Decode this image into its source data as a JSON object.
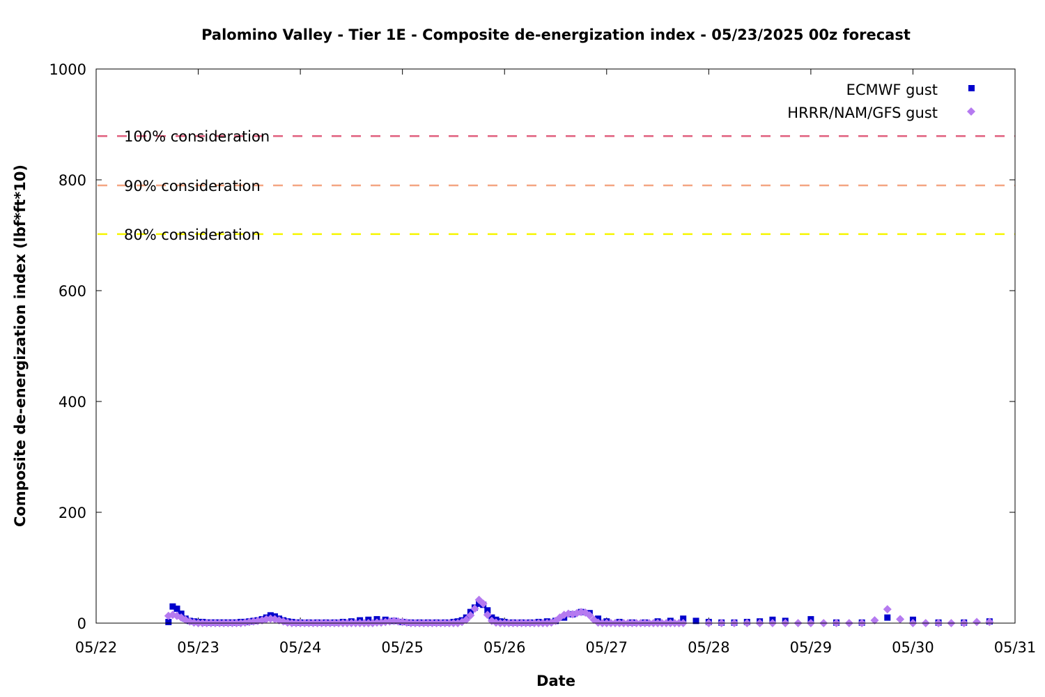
{
  "chart_data": {
    "type": "scatter",
    "title": "Palomino Valley - Tier 1E - Composite de-energization index - 05/23/2025 00z forecast",
    "xlabel": "Date",
    "ylabel": "Composite de-energization index (lbf*ft*10)",
    "ylim": [
      0,
      1000
    ],
    "xlim": [
      "05/22 00:00",
      "05/31 00:00"
    ],
    "x_ticks": [
      "05/22",
      "05/23",
      "05/24",
      "05/25",
      "05/26",
      "05/27",
      "05/28",
      "05/29",
      "05/30",
      "05/31"
    ],
    "y_ticks": [
      0,
      200,
      400,
      600,
      800,
      1000
    ],
    "grid": false,
    "legend_position": "top-right",
    "thresholds": [
      {
        "label": "100% consideration",
        "value": 879,
        "color": "#e0607e"
      },
      {
        "label": "90% consideration",
        "value": 790,
        "color": "#f4a582"
      },
      {
        "label": "80% consideration",
        "value": 702,
        "color": "#f5f500"
      }
    ],
    "series": [
      {
        "name": "ECMWF gust",
        "color": "#0000cc",
        "marker": "square",
        "points": [
          [
            "05/22 17:00",
            2
          ],
          [
            "05/22 18:00",
            30
          ],
          [
            "05/22 19:00",
            26
          ],
          [
            "05/22 20:00",
            17
          ],
          [
            "05/22 21:00",
            8
          ],
          [
            "05/22 22:00",
            4
          ],
          [
            "05/22 23:00",
            3
          ],
          [
            "05/23 00:00",
            2
          ],
          [
            "05/23 01:00",
            2
          ],
          [
            "05/23 02:00",
            1
          ],
          [
            "05/23 03:00",
            1
          ],
          [
            "05/23 04:00",
            1
          ],
          [
            "05/23 05:00",
            1
          ],
          [
            "05/23 06:00",
            1
          ],
          [
            "05/23 07:00",
            1
          ],
          [
            "05/23 08:00",
            1
          ],
          [
            "05/23 09:00",
            1
          ],
          [
            "05/23 10:00",
            2
          ],
          [
            "05/23 11:00",
            2
          ],
          [
            "05/23 12:00",
            3
          ],
          [
            "05/23 13:00",
            4
          ],
          [
            "05/23 14:00",
            5
          ],
          [
            "05/23 15:00",
            7
          ],
          [
            "05/23 16:00",
            10
          ],
          [
            "05/23 17:00",
            14
          ],
          [
            "05/23 18:00",
            12
          ],
          [
            "05/23 19:00",
            8
          ],
          [
            "05/23 20:00",
            5
          ],
          [
            "05/23 21:00",
            3
          ],
          [
            "05/23 22:00",
            2
          ],
          [
            "05/23 23:00",
            1
          ],
          [
            "05/24 00:00",
            1
          ],
          [
            "05/24 02:00",
            1
          ],
          [
            "05/24 04:00",
            1
          ],
          [
            "05/24 06:00",
            1
          ],
          [
            "05/24 08:00",
            1
          ],
          [
            "05/24 10:00",
            2
          ],
          [
            "05/24 12:00",
            3
          ],
          [
            "05/24 14:00",
            5
          ],
          [
            "05/24 16:00",
            6
          ],
          [
            "05/24 18:00",
            7
          ],
          [
            "05/24 20:00",
            6
          ],
          [
            "05/24 22:00",
            4
          ],
          [
            "05/25 00:00",
            2
          ],
          [
            "05/25 02:00",
            1
          ],
          [
            "05/25 04:00",
            1
          ],
          [
            "05/25 06:00",
            1
          ],
          [
            "05/25 08:00",
            1
          ],
          [
            "05/25 10:00",
            1
          ],
          [
            "05/25 12:00",
            2
          ],
          [
            "05/25 13:00",
            3
          ],
          [
            "05/25 14:00",
            5
          ],
          [
            "05/25 15:00",
            10
          ],
          [
            "05/25 16:00",
            20
          ],
          [
            "05/25 17:00",
            28
          ],
          [
            "05/25 18:00",
            35
          ],
          [
            "05/25 19:00",
            33
          ],
          [
            "05/25 20:00",
            23
          ],
          [
            "05/25 21:00",
            10
          ],
          [
            "05/25 22:00",
            6
          ],
          [
            "05/25 23:00",
            3
          ],
          [
            "05/26 00:00",
            2
          ],
          [
            "05/26 02:00",
            1
          ],
          [
            "05/26 04:00",
            1
          ],
          [
            "05/26 06:00",
            1
          ],
          [
            "05/26 08:00",
            2
          ],
          [
            "05/26 10:00",
            3
          ],
          [
            "05/26 12:00",
            4
          ],
          [
            "05/26 14:00",
            10
          ],
          [
            "05/26 16:00",
            16
          ],
          [
            "05/26 18:00",
            20
          ],
          [
            "05/26 20:00",
            18
          ],
          [
            "05/26 22:00",
            8
          ],
          [
            "05/27 00:00",
            3
          ],
          [
            "05/27 03:00",
            2
          ],
          [
            "05/27 06:00",
            1
          ],
          [
            "05/27 09:00",
            1
          ],
          [
            "05/27 12:00",
            3
          ],
          [
            "05/27 15:00",
            4
          ],
          [
            "05/27 18:00",
            8
          ],
          [
            "05/27 21:00",
            4
          ],
          [
            "05/28 00:00",
            2
          ],
          [
            "05/28 03:00",
            1
          ],
          [
            "05/28 06:00",
            1
          ],
          [
            "05/28 09:00",
            2
          ],
          [
            "05/28 12:00",
            3
          ],
          [
            "05/28 15:00",
            6
          ],
          [
            "05/28 18:00",
            4
          ],
          [
            "05/29 00:00",
            7
          ],
          [
            "05/29 06:00",
            1
          ],
          [
            "05/29 12:00",
            1
          ],
          [
            "05/29 18:00",
            10
          ],
          [
            "05/30 00:00",
            6
          ],
          [
            "05/30 06:00",
            1
          ],
          [
            "05/30 12:00",
            1
          ],
          [
            "05/30 18:00",
            3
          ]
        ]
      },
      {
        "name": "HRRR/NAM/GFS gust",
        "color": "#b57af0",
        "marker": "diamond",
        "points": [
          [
            "05/22 17:00",
            13
          ],
          [
            "05/22 18:00",
            15
          ],
          [
            "05/22 19:00",
            13
          ],
          [
            "05/22 20:00",
            10
          ],
          [
            "05/22 21:00",
            6
          ],
          [
            "05/22 22:00",
            3
          ],
          [
            "05/22 23:00",
            1
          ],
          [
            "05/23 00:00",
            0
          ],
          [
            "05/23 01:00",
            0
          ],
          [
            "05/23 02:00",
            0
          ],
          [
            "05/23 03:00",
            0
          ],
          [
            "05/23 04:00",
            0
          ],
          [
            "05/23 05:00",
            0
          ],
          [
            "05/23 06:00",
            0
          ],
          [
            "05/23 07:00",
            0
          ],
          [
            "05/23 08:00",
            0
          ],
          [
            "05/23 09:00",
            0
          ],
          [
            "05/23 10:00",
            0
          ],
          [
            "05/23 11:00",
            1
          ],
          [
            "05/23 12:00",
            2
          ],
          [
            "05/23 13:00",
            3
          ],
          [
            "05/23 14:00",
            4
          ],
          [
            "05/23 15:00",
            5
          ],
          [
            "05/23 16:00",
            7
          ],
          [
            "05/23 17:00",
            8
          ],
          [
            "05/23 18:00",
            7
          ],
          [
            "05/23 19:00",
            5
          ],
          [
            "05/23 20:00",
            3
          ],
          [
            "05/23 21:00",
            1
          ],
          [
            "05/23 22:00",
            0
          ],
          [
            "05/23 23:00",
            0
          ],
          [
            "05/24 00:00",
            0
          ],
          [
            "05/24 01:00",
            0
          ],
          [
            "05/24 02:00",
            0
          ],
          [
            "05/24 03:00",
            0
          ],
          [
            "05/24 04:00",
            0
          ],
          [
            "05/24 05:00",
            0
          ],
          [
            "05/24 06:00",
            0
          ],
          [
            "05/24 07:00",
            0
          ],
          [
            "05/24 08:00",
            0
          ],
          [
            "05/24 09:00",
            0
          ],
          [
            "05/24 10:00",
            0
          ],
          [
            "05/24 11:00",
            0
          ],
          [
            "05/24 12:00",
            0
          ],
          [
            "05/24 13:00",
            0
          ],
          [
            "05/24 14:00",
            0
          ],
          [
            "05/24 15:00",
            0
          ],
          [
            "05/24 16:00",
            0
          ],
          [
            "05/24 17:00",
            0
          ],
          [
            "05/24 18:00",
            1
          ],
          [
            "05/24 19:00",
            1
          ],
          [
            "05/24 20:00",
            2
          ],
          [
            "05/24 21:00",
            3
          ],
          [
            "05/24 22:00",
            4
          ],
          [
            "05/24 23:00",
            3
          ],
          [
            "05/25 00:00",
            2
          ],
          [
            "05/25 01:00",
            1
          ],
          [
            "05/25 02:00",
            0
          ],
          [
            "05/25 03:00",
            0
          ],
          [
            "05/25 04:00",
            0
          ],
          [
            "05/25 05:00",
            0
          ],
          [
            "05/25 06:00",
            0
          ],
          [
            "05/25 07:00",
            0
          ],
          [
            "05/25 08:00",
            0
          ],
          [
            "05/25 09:00",
            0
          ],
          [
            "05/25 10:00",
            0
          ],
          [
            "05/25 11:00",
            0
          ],
          [
            "05/25 12:00",
            0
          ],
          [
            "05/25 13:00",
            0
          ],
          [
            "05/25 14:00",
            2
          ],
          [
            "05/25 15:00",
            6
          ],
          [
            "05/25 16:00",
            14
          ],
          [
            "05/25 17:00",
            26
          ],
          [
            "05/25 18:00",
            42
          ],
          [
            "05/25 19:00",
            35
          ],
          [
            "05/25 20:00",
            15
          ],
          [
            "05/25 21:00",
            4
          ],
          [
            "05/25 22:00",
            1
          ],
          [
            "05/25 23:00",
            0
          ],
          [
            "05/26 00:00",
            0
          ],
          [
            "05/26 01:00",
            0
          ],
          [
            "05/26 02:00",
            0
          ],
          [
            "05/26 03:00",
            0
          ],
          [
            "05/26 04:00",
            0
          ],
          [
            "05/26 05:00",
            0
          ],
          [
            "05/26 06:00",
            0
          ],
          [
            "05/26 07:00",
            0
          ],
          [
            "05/26 08:00",
            0
          ],
          [
            "05/26 09:00",
            0
          ],
          [
            "05/26 10:00",
            0
          ],
          [
            "05/26 11:00",
            1
          ],
          [
            "05/26 12:00",
            4
          ],
          [
            "05/26 13:00",
            10
          ],
          [
            "05/26 14:00",
            15
          ],
          [
            "05/26 15:00",
            17
          ],
          [
            "05/26 16:00",
            16
          ],
          [
            "05/26 17:00",
            18
          ],
          [
            "05/26 18:00",
            20
          ],
          [
            "05/26 19:00",
            19
          ],
          [
            "05/26 20:00",
            14
          ],
          [
            "05/26 21:00",
            6
          ],
          [
            "05/26 22:00",
            1
          ],
          [
            "05/26 23:00",
            0
          ],
          [
            "05/27 00:00",
            0
          ],
          [
            "05/27 01:00",
            0
          ],
          [
            "05/27 02:00",
            0
          ],
          [
            "05/27 03:00",
            0
          ],
          [
            "05/27 04:00",
            0
          ],
          [
            "05/27 05:00",
            0
          ],
          [
            "05/27 06:00",
            0
          ],
          [
            "05/27 07:00",
            0
          ],
          [
            "05/27 08:00",
            0
          ],
          [
            "05/27 09:00",
            0
          ],
          [
            "05/27 10:00",
            0
          ],
          [
            "05/27 11:00",
            0
          ],
          [
            "05/27 12:00",
            0
          ],
          [
            "05/27 13:00",
            0
          ],
          [
            "05/27 14:00",
            0
          ],
          [
            "05/27 15:00",
            0
          ],
          [
            "05/27 16:00",
            0
          ],
          [
            "05/27 17:00",
            0
          ],
          [
            "05/27 18:00",
            0
          ],
          [
            "05/28 00:00",
            0
          ],
          [
            "05/28 03:00",
            0
          ],
          [
            "05/28 06:00",
            0
          ],
          [
            "05/28 09:00",
            0
          ],
          [
            "05/28 12:00",
            0
          ],
          [
            "05/28 15:00",
            0
          ],
          [
            "05/28 18:00",
            0
          ],
          [
            "05/28 21:00",
            0
          ],
          [
            "05/29 00:00",
            0
          ],
          [
            "05/29 03:00",
            0
          ],
          [
            "05/29 06:00",
            0
          ],
          [
            "05/29 09:00",
            0
          ],
          [
            "05/29 12:00",
            0
          ],
          [
            "05/29 15:00",
            5
          ],
          [
            "05/29 18:00",
            25
          ],
          [
            "05/29 21:00",
            7
          ],
          [
            "05/30 00:00",
            0
          ],
          [
            "05/30 03:00",
            0
          ],
          [
            "05/30 06:00",
            0
          ],
          [
            "05/30 09:00",
            0
          ],
          [
            "05/30 12:00",
            0
          ],
          [
            "05/30 15:00",
            2
          ],
          [
            "05/30 18:00",
            2
          ]
        ]
      }
    ]
  }
}
